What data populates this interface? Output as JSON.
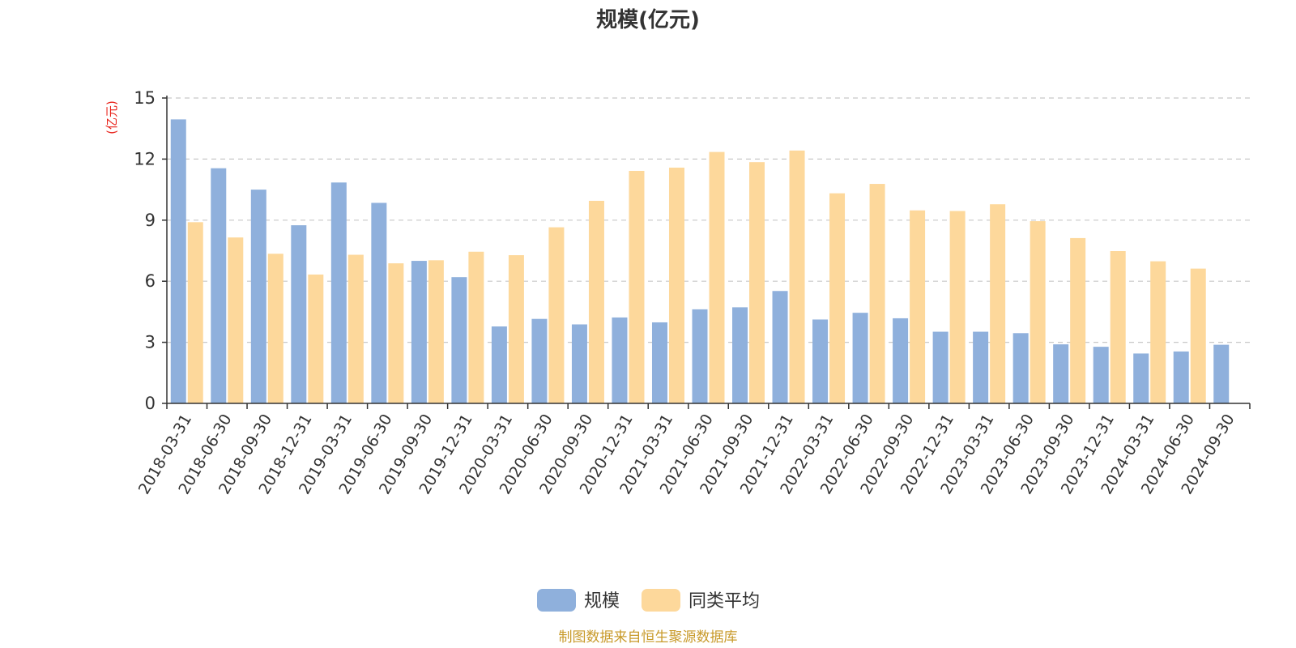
{
  "chart_data": {
    "type": "bar",
    "title": "规模(亿元)",
    "ylabel": "(亿元)",
    "xlabel": "",
    "ylim": [
      0,
      15
    ],
    "yticks": [
      0,
      3,
      6,
      9,
      12,
      15
    ],
    "grid": true,
    "legend_position": "bottom",
    "categories": [
      "2018-03-31",
      "2018-06-30",
      "2018-09-30",
      "2018-12-31",
      "2019-03-31",
      "2019-06-30",
      "2019-09-30",
      "2019-12-31",
      "2020-03-31",
      "2020-06-30",
      "2020-09-30",
      "2020-12-31",
      "2021-03-31",
      "2021-06-30",
      "2021-09-30",
      "2021-12-31",
      "2022-03-31",
      "2022-06-30",
      "2022-09-30",
      "2022-12-31",
      "2023-03-31",
      "2023-06-30",
      "2023-09-30",
      "2023-12-31",
      "2024-03-31",
      "2024-06-30",
      "2024-09-30"
    ],
    "series": [
      {
        "name": "规模",
        "color": "#8fb0dc",
        "values": [
          13.95,
          11.55,
          10.5,
          8.75,
          10.85,
          9.85,
          7.0,
          6.2,
          3.78,
          4.15,
          3.88,
          4.22,
          3.98,
          4.62,
          4.72,
          5.52,
          4.12,
          4.45,
          4.18,
          3.52,
          3.52,
          3.45,
          2.9,
          2.78,
          2.45,
          2.55,
          2.88
        ]
      },
      {
        "name": "同类平均",
        "color": "#fdd89b",
        "values": [
          8.9,
          8.15,
          7.35,
          6.33,
          7.3,
          6.88,
          7.03,
          7.45,
          7.28,
          8.65,
          9.95,
          11.42,
          11.58,
          12.35,
          11.85,
          12.42,
          10.32,
          10.78,
          9.48,
          9.45,
          9.78,
          8.95,
          8.12,
          7.48,
          6.98,
          6.62,
          null
        ]
      }
    ],
    "source": "制图数据来自恒生聚源数据库"
  }
}
